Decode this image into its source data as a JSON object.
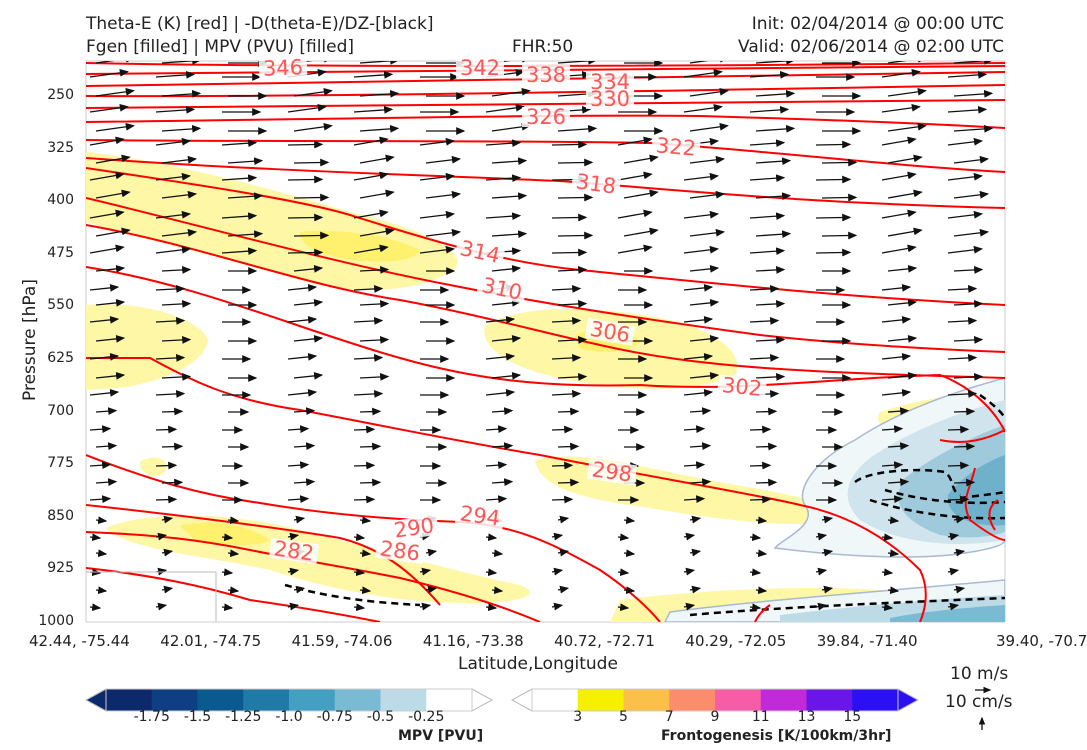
{
  "header": {
    "title_line1": "Theta-E (K) [red] | -D(theta-E)/DZ-[black]",
    "title_line2": "Fgen [filled] | MPV (PVU) [filled]",
    "fhr": "FHR:50",
    "init": "Init: 02/04/2014 @ 00:00 UTC",
    "valid": "Valid: 02/06/2014 @ 02:00 UTC"
  },
  "chart_data": {
    "type": "cross-section",
    "xlabel": "Latitude,Longitude",
    "ylabel": "Pressure [hPa]",
    "x_ticks": [
      "42.44, -75.44",
      "42.01, -74.75",
      "41.59, -74.06",
      "41.16, -73.38",
      "40.72, -72.71",
      "40.29, -72.05",
      "39.84, -71.40",
      "39.40, -70.7"
    ],
    "y_ticks": [
      250,
      325,
      400,
      475,
      550,
      625,
      700,
      775,
      850,
      925,
      1000
    ],
    "ylim": [
      200,
      1000
    ],
    "y_inverted": true,
    "theta_e_labels": [
      346,
      342,
      338,
      334,
      330,
      326,
      322,
      318,
      314,
      310,
      306,
      302,
      298,
      294,
      290,
      286,
      282
    ],
    "theta_e_color": "#ff0000",
    "label_color": "#ff5555",
    "wind_reference": {
      "wind": "10 m/s",
      "vertical": "10 cm/s"
    },
    "mpv_colorbar": {
      "label": "MPV [PVU]",
      "ticks": [
        "-1.75",
        "-1.5",
        "-1.25",
        "-1.0",
        "-0.75",
        "-0.5",
        "-0.25"
      ],
      "colors": [
        "#0c2a6b",
        "#0d3f82",
        "#0a5a90",
        "#1f7aa8",
        "#44a0c2",
        "#7bbad3",
        "#bcdbe6",
        "#ffffff"
      ]
    },
    "fgen_colorbar": {
      "label": "Frontogenesis [K/100km/3hr]",
      "ticks": [
        "3",
        "5",
        "7",
        "9",
        "11",
        "13",
        "15"
      ],
      "colors": [
        "#ffffff",
        "#f5f000",
        "#fbc04a",
        "#fb8c6c",
        "#f75ca6",
        "#c02ad8",
        "#6b16e8",
        "#2a10f2"
      ]
    }
  }
}
